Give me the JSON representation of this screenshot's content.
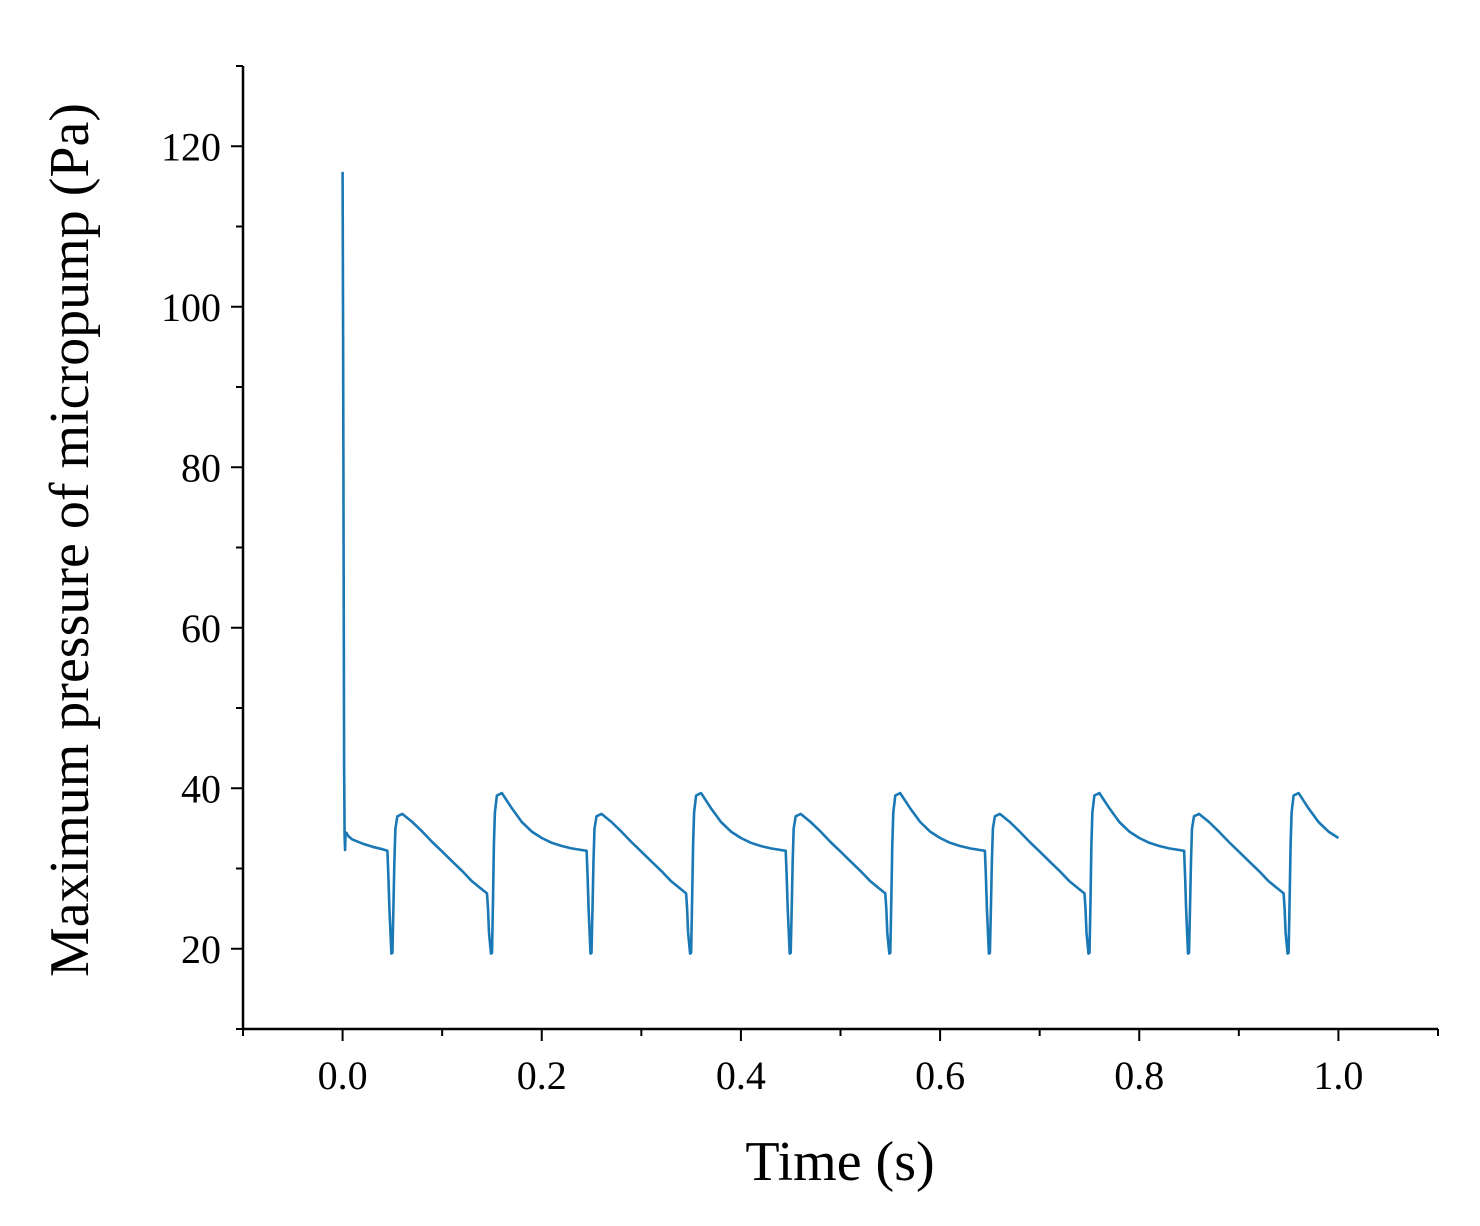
{
  "chart_data": {
    "type": "line",
    "title": "",
    "xlabel": "Time (s)",
    "ylabel": "Maximum pressure of micropump (Pa)",
    "xlim": [
      -0.1,
      1.1
    ],
    "ylim": [
      10,
      130
    ],
    "xticks": [
      0.0,
      0.2,
      0.4,
      0.6,
      0.8,
      1.0
    ],
    "xtick_labels": [
      "0.0",
      "0.2",
      "0.4",
      "0.6",
      "0.8",
      "1.0"
    ],
    "yticks": [
      20,
      40,
      60,
      80,
      100,
      120
    ],
    "ytick_labels": [
      "20",
      "40",
      "60",
      "80",
      "100",
      "120"
    ],
    "grid": false,
    "line_color": "#1a78b4",
    "series": [
      {
        "name": "Maximum pressure",
        "x": [
          0.0,
          0.0005,
          0.001,
          0.0015,
          0.002,
          0.0025,
          0.003,
          0.004,
          0.005,
          0.006,
          0.01,
          0.02,
          0.03,
          0.04,
          0.045,
          0.046,
          0.047,
          0.049,
          0.05,
          0.051,
          0.052,
          0.053,
          0.055,
          0.06,
          0.07,
          0.08,
          0.09,
          0.1,
          0.11,
          0.12,
          0.13,
          0.14,
          0.145,
          0.146,
          0.147,
          0.149,
          0.15,
          0.151,
          0.152,
          0.153,
          0.155,
          0.16,
          0.17,
          0.18,
          0.19,
          0.2,
          0.21,
          0.22,
          0.23,
          0.24,
          0.245,
          0.246,
          0.247,
          0.249,
          0.25,
          0.251,
          0.252,
          0.253,
          0.255,
          0.26,
          0.27,
          0.28,
          0.29,
          0.3,
          0.31,
          0.32,
          0.33,
          0.34,
          0.345,
          0.346,
          0.347,
          0.349,
          0.35,
          0.351,
          0.352,
          0.353,
          0.355,
          0.36,
          0.37,
          0.38,
          0.39,
          0.4,
          0.41,
          0.42,
          0.43,
          0.44,
          0.445,
          0.446,
          0.447,
          0.449,
          0.45,
          0.451,
          0.452,
          0.453,
          0.455,
          0.46,
          0.47,
          0.48,
          0.49,
          0.5,
          0.51,
          0.52,
          0.53,
          0.54,
          0.545,
          0.546,
          0.547,
          0.549,
          0.55,
          0.551,
          0.552,
          0.553,
          0.555,
          0.56,
          0.57,
          0.58,
          0.59,
          0.6,
          0.61,
          0.62,
          0.63,
          0.64,
          0.645,
          0.646,
          0.647,
          0.649,
          0.65,
          0.651,
          0.652,
          0.653,
          0.655,
          0.66,
          0.67,
          0.68,
          0.69,
          0.7,
          0.71,
          0.72,
          0.73,
          0.74,
          0.745,
          0.746,
          0.747,
          0.749,
          0.75,
          0.751,
          0.752,
          0.753,
          0.755,
          0.76,
          0.77,
          0.78,
          0.79,
          0.8,
          0.81,
          0.82,
          0.83,
          0.84,
          0.845,
          0.846,
          0.847,
          0.849,
          0.85,
          0.851,
          0.852,
          0.853,
          0.855,
          0.86,
          0.87,
          0.88,
          0.89,
          0.9,
          0.91,
          0.92,
          0.93,
          0.94,
          0.945,
          0.946,
          0.947,
          0.949,
          0.95,
          0.951,
          0.952,
          0.953,
          0.955,
          0.96,
          0.97,
          0.98,
          0.99,
          1.0
        ],
        "y": [
          116.8,
          96.5,
          70.0,
          43.0,
          34.0,
          32.3,
          34.5,
          34.4,
          34.2,
          34.0,
          33.6,
          33.1,
          32.7,
          32.4,
          32.2,
          29.0,
          25.0,
          19.4,
          19.5,
          25.0,
          31.0,
          35.0,
          36.5,
          36.8,
          35.8,
          34.6,
          33.3,
          32.1,
          30.9,
          29.7,
          28.4,
          27.4,
          26.9,
          25.0,
          22.0,
          19.4,
          19.5,
          26.0,
          33.0,
          37.0,
          39.1,
          39.4,
          37.5,
          35.8,
          34.6,
          33.8,
          33.2,
          32.8,
          32.5,
          32.3,
          32.2,
          29.0,
          25.0,
          19.4,
          19.5,
          25.0,
          31.0,
          35.0,
          36.5,
          36.8,
          35.8,
          34.6,
          33.3,
          32.1,
          30.9,
          29.7,
          28.4,
          27.4,
          26.9,
          25.0,
          22.0,
          19.4,
          19.5,
          26.0,
          33.0,
          37.0,
          39.1,
          39.4,
          37.5,
          35.8,
          34.6,
          33.8,
          33.2,
          32.8,
          32.5,
          32.3,
          32.2,
          29.0,
          25.0,
          19.4,
          19.5,
          25.0,
          31.0,
          35.0,
          36.5,
          36.8,
          35.8,
          34.6,
          33.3,
          32.1,
          30.9,
          29.7,
          28.4,
          27.4,
          26.9,
          25.0,
          22.0,
          19.4,
          19.5,
          26.0,
          33.0,
          37.0,
          39.1,
          39.4,
          37.5,
          35.8,
          34.6,
          33.8,
          33.2,
          32.8,
          32.5,
          32.3,
          32.2,
          29.0,
          25.0,
          19.4,
          19.5,
          25.0,
          31.0,
          35.0,
          36.5,
          36.8,
          35.8,
          34.6,
          33.3,
          32.1,
          30.9,
          29.7,
          28.4,
          27.4,
          26.9,
          25.0,
          22.0,
          19.4,
          19.5,
          26.0,
          33.0,
          37.0,
          39.1,
          39.4,
          37.5,
          35.8,
          34.6,
          33.8,
          33.2,
          32.8,
          32.5,
          32.3,
          32.2,
          29.0,
          25.0,
          19.4,
          19.5,
          25.0,
          31.0,
          35.0,
          36.5,
          36.8,
          35.8,
          34.6,
          33.3,
          32.1,
          30.9,
          29.7,
          28.4,
          27.4,
          26.9,
          25.0,
          22.0,
          19.4,
          19.5,
          26.0,
          33.0,
          37.0,
          39.1,
          39.4,
          37.5,
          35.8,
          34.6,
          33.8
        ]
      }
    ]
  }
}
